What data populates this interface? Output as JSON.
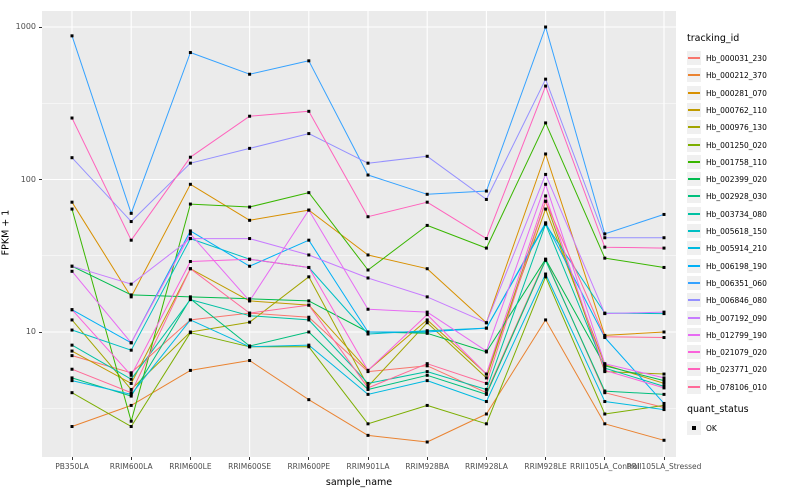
{
  "axes": {
    "x_title": "sample_name",
    "y_title": "FPKM + 1",
    "y_tick_labels": [
      "10",
      "100",
      "1000"
    ]
  },
  "legend": {
    "tracking_title": "tracking_id",
    "quant_title": "quant_status",
    "quant_label": "OK"
  },
  "colors": {
    "panel_bg": "#EBEBEB",
    "grid": "#FFFFFF",
    "tick_text": "#4D4D4D",
    "point": "#000000"
  },
  "chart_data": {
    "type": "line",
    "title": "",
    "xlabel": "sample_name",
    "ylabel": "FPKM + 1",
    "y_scale": "log10",
    "y_ticks": [
      10,
      100,
      1000
    ],
    "ylim": [
      1.5,
      1270
    ],
    "grid": true,
    "legend_position": "right",
    "point_marker": "small black square (quant_status OK)",
    "categories": [
      "PB350LA",
      "RRIM600LA",
      "RRIM600LE",
      "RRIM600SE",
      "RRIM600PE",
      "RRIM901LA",
      "RRIM928BA",
      "RRIM928LA",
      "RRIM928LE",
      "RRII105LA_Control",
      "RRII105LA_Stressed"
    ],
    "series": [
      {
        "name": "Hb_000031_230",
        "color": "#F8766D",
        "values": [
          7.0,
          5.4,
          12,
          13.3,
          12.5,
          5.5,
          6.0,
          4.0,
          30,
          4.0,
          3.2
        ]
      },
      {
        "name": "Hb_000212_370",
        "color": "#EA8331",
        "values": [
          2.4,
          3.3,
          5.6,
          6.5,
          3.6,
          2.1,
          1.9,
          2.9,
          12,
          2.5,
          1.95
        ]
      },
      {
        "name": "Hb_000281_070",
        "color": "#D89000",
        "values": [
          71,
          17,
          93,
          54,
          63,
          32,
          26,
          11.5,
          147,
          9.5,
          10
        ]
      },
      {
        "name": "Hb_000762_110",
        "color": "#C09B00",
        "values": [
          7.5,
          4.6,
          26,
          16,
          15,
          5.6,
          12,
          5.3,
          64,
          6.1,
          4.6
        ]
      },
      {
        "name": "Hb_000976_130",
        "color": "#A3A500",
        "values": [
          12,
          4.2,
          10,
          11.6,
          23,
          4.4,
          11.5,
          5.0,
          72,
          5.5,
          5.3
        ]
      },
      {
        "name": "Hb_001250_020",
        "color": "#7CAE00",
        "values": [
          4.0,
          2.4,
          9.9,
          8.0,
          8.0,
          2.5,
          3.3,
          2.5,
          23,
          2.9,
          3.3
        ]
      },
      {
        "name": "Hb_001758_110",
        "color": "#39B600",
        "values": [
          64,
          2.6,
          69,
          66,
          82,
          25.5,
          50,
          35.5,
          235,
          30.5,
          26.5
        ]
      },
      {
        "name": "Hb_002399_020",
        "color": "#00BB4E",
        "values": [
          27,
          17.5,
          17,
          16.5,
          16,
          10,
          9.8,
          7.4,
          30,
          6.0,
          4.8
        ]
      },
      {
        "name": "Hb_002928_030",
        "color": "#00BF7D",
        "values": [
          5.0,
          3.8,
          16.5,
          8.1,
          10,
          4.2,
          5.2,
          3.9,
          29.5,
          4.1,
          3.9
        ]
      },
      {
        "name": "Hb_003734_080",
        "color": "#00C1A3",
        "values": [
          8.2,
          4.9,
          16.3,
          12.8,
          12,
          4.6,
          5.5,
          4.2,
          51,
          5.8,
          4.4
        ]
      },
      {
        "name": "Hb_005618_150",
        "color": "#00BFC4",
        "values": [
          10.3,
          7.6,
          41,
          30,
          26.5,
          9.7,
          10.2,
          10.6,
          51,
          13.3,
          13.2
        ]
      },
      {
        "name": "Hb_005914_210",
        "color": "#00BAE0",
        "values": [
          4.8,
          3.9,
          12,
          8.0,
          8.2,
          3.9,
          4.8,
          3.5,
          24,
          3.5,
          3.1
        ]
      },
      {
        "name": "Hb_006198_190",
        "color": "#00B0F6",
        "values": [
          14,
          8.5,
          46,
          27,
          40,
          10,
          10,
          10.6,
          52,
          9.2,
          3.4
        ]
      },
      {
        "name": "Hb_006351_060",
        "color": "#35A2FF",
        "values": [
          875,
          60,
          680,
          490,
          600,
          107,
          80,
          84,
          1000,
          44,
          59
        ]
      },
      {
        "name": "Hb_006846_080",
        "color": "#9590FF",
        "values": [
          139,
          53,
          128,
          160,
          200,
          128,
          142,
          74,
          455,
          41.5,
          41.5
        ]
      },
      {
        "name": "Hb_007192_090",
        "color": "#C77CFF",
        "values": [
          27,
          20.6,
          41,
          41,
          32,
          22.6,
          17,
          11.5,
          108,
          13.2,
          13.5
        ]
      },
      {
        "name": "Hb_012799_190",
        "color": "#E76BF3",
        "values": [
          25,
          8.5,
          44,
          16,
          63,
          14.1,
          13.5,
          7.5,
          93,
          6.2,
          5.0
        ]
      },
      {
        "name": "Hb_021079_020",
        "color": "#FA62DB",
        "values": [
          14,
          5.2,
          29,
          30,
          26.5,
          5.6,
          13,
          5.3,
          78,
          5.6,
          4.3
        ]
      },
      {
        "name": "Hb_023771_020",
        "color": "#FF62BC",
        "values": [
          253,
          40,
          140,
          260,
          280,
          57,
          71,
          41,
          410,
          36,
          35.5
        ]
      },
      {
        "name": "Hb_078106_010",
        "color": "#FF6A98",
        "values": [
          5.7,
          4.0,
          26,
          13.3,
          15,
          4.3,
          6.2,
          4.6,
          72,
          9.3,
          9.2
        ]
      }
    ]
  }
}
